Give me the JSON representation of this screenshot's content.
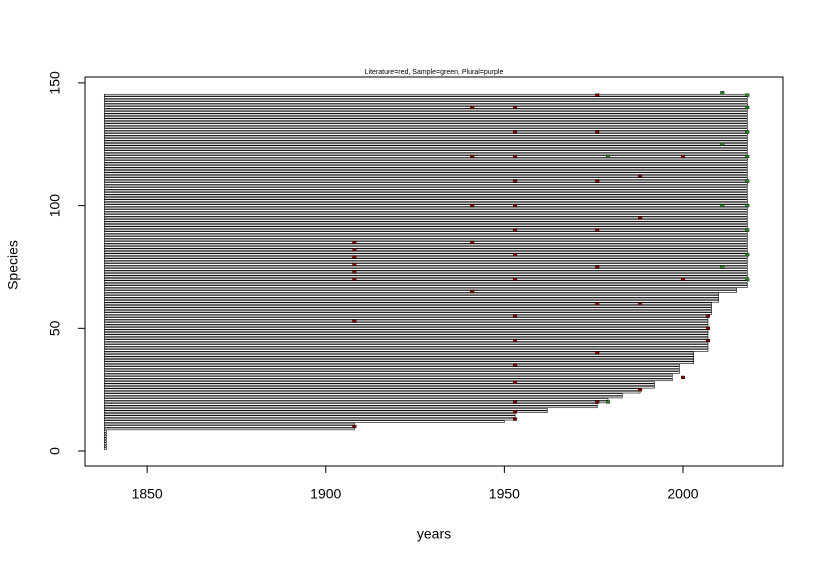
{
  "chart_data": {
    "type": "ranges",
    "title": "Literature=red, Sample=green, Plural=purple",
    "xlabel": "years",
    "ylabel": "Species",
    "xlim": [
      1832.6,
      2028
    ],
    "ylim": [
      -6.1,
      152.4
    ],
    "xticks": [
      1850,
      1900,
      1950,
      2000
    ],
    "yticks": [
      0,
      50,
      100,
      150
    ],
    "line_color": "#000000",
    "start": 1838,
    "y": [
      1,
      2,
      3,
      4,
      5,
      6,
      7,
      8,
      9,
      10,
      11,
      12,
      13,
      14,
      15,
      16,
      17,
      18,
      19,
      20,
      21,
      22,
      23,
      24,
      25,
      26,
      27,
      28,
      29,
      30,
      31,
      32,
      33,
      34,
      35,
      36,
      37,
      38,
      39,
      40,
      41,
      42,
      43,
      44,
      45,
      46,
      47,
      48,
      49,
      50,
      51,
      52,
      53,
      54,
      55,
      56,
      57,
      58,
      59,
      60,
      61,
      62,
      63,
      64,
      65,
      66,
      67,
      68,
      69,
      70,
      71,
      72,
      73,
      74,
      75,
      76,
      77,
      78,
      79,
      80,
      81,
      82,
      83,
      84,
      85,
      86,
      87,
      88,
      89,
      90,
      91,
      92,
      93,
      94,
      95,
      96,
      97,
      98,
      99,
      100,
      101,
      102,
      103,
      104,
      105,
      106,
      107,
      108,
      109,
      110,
      111,
      112,
      113,
      114,
      115,
      116,
      117,
      118,
      119,
      120,
      121,
      122,
      123,
      124,
      125,
      126,
      127,
      128,
      129,
      130,
      131,
      132,
      133,
      134,
      135,
      136,
      137,
      138,
      139,
      140,
      141,
      142,
      143,
      144,
      145
    ],
    "end": [
      1838,
      1838,
      1838,
      1838,
      1838,
      1838,
      1838,
      1838,
      1908,
      1908,
      1908,
      1950,
      1953,
      1953,
      1953,
      1962,
      1962,
      1976,
      1976,
      1979,
      1979,
      1983,
      1983,
      1988,
      1988,
      1992,
      1992,
      1992,
      1997,
      1997,
      1997,
      1999,
      1999,
      1999,
      1999,
      2003,
      2003,
      2003,
      2003,
      2003,
      2007,
      2007,
      2007,
      2007,
      2007,
      2007,
      2007,
      2007,
      2007,
      2007,
      2007,
      2007,
      2007,
      2007,
      2007,
      2008,
      2008,
      2008,
      2008,
      2008,
      2010,
      2010,
      2010,
      2010,
      2015,
      2015,
      2018,
      2018,
      2018,
      2018,
      2018,
      2018,
      2018,
      2018,
      2018,
      2018,
      2018,
      2018,
      2018,
      2018,
      2018,
      2018,
      2018,
      2018,
      2018,
      2018,
      2018,
      2018,
      2018,
      2018,
      2018,
      2018,
      2018,
      2018,
      2018,
      2018,
      2018,
      2018,
      2018,
      2018,
      2018,
      2018,
      2018,
      2018,
      2018,
      2018,
      2018,
      2018,
      2018,
      2018,
      2018,
      2018,
      2018,
      2018,
      2018,
      2018,
      2018,
      2018,
      2018,
      2018,
      2018,
      2018,
      2018,
      2018,
      2018,
      2018,
      2018,
      2018,
      2018,
      2018,
      2018,
      2018,
      2018,
      2018,
      2018,
      2018,
      2018,
      2018,
      2018,
      2018,
      2018,
      2018,
      2018,
      2018,
      2018
    ],
    "literature": {
      "color": "#8b0000",
      "x": [
        1908,
        1908,
        1908,
        1908,
        1908,
        1908,
        1908,
        1908,
        1953,
        1953,
        1953,
        1953,
        1953,
        1953,
        1953,
        1953,
        1953,
        1953,
        1953,
        1953,
        1953,
        1953,
        1953,
        1941,
        1941,
        1941,
        1941,
        1941,
        1976,
        1976,
        1976,
        1976,
        1976,
        1976,
        1976,
        1976,
        1988,
        1988,
        1988,
        1988,
        2000,
        2000,
        2000,
        2007,
        2007,
        2007
      ],
      "y": [
        70,
        73,
        76,
        79,
        82,
        85,
        53,
        10,
        13,
        16,
        20,
        28,
        35,
        45,
        55,
        70,
        80,
        90,
        100,
        110,
        120,
        130,
        140,
        65,
        85,
        100,
        120,
        140,
        20,
        40,
        60,
        75,
        90,
        110,
        130,
        145,
        25,
        60,
        95,
        112,
        30,
        70,
        120,
        45,
        50,
        55
      ]
    },
    "sample": {
      "color": "#228b22",
      "x": [
        2018,
        2018,
        2018,
        2018,
        2018,
        2018,
        2018,
        2018,
        2018,
        2011,
        2011,
        2011,
        2011,
        1979,
        1979
      ],
      "y": [
        70,
        80,
        90,
        100,
        110,
        120,
        130,
        140,
        145,
        75,
        100,
        125,
        146,
        20,
        120
      ]
    }
  }
}
